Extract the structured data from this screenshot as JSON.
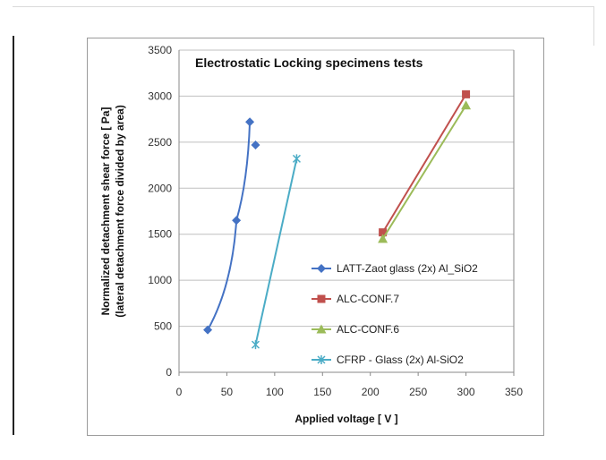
{
  "chart_data": {
    "type": "line",
    "title": "Electrostatic Locking specimens tests",
    "xlabel": "Applied voltage [ V ]",
    "ylabel_line1": "Normalized detachment  shear force [ Pa]",
    "ylabel_line2": "(lateral detachment force divided by area)",
    "xlim": [
      0,
      350
    ],
    "ylim": [
      0,
      3500
    ],
    "xticks": [
      0,
      50,
      100,
      150,
      200,
      250,
      300,
      350
    ],
    "yticks": [
      0,
      500,
      1000,
      1500,
      2000,
      2500,
      3000,
      3500
    ],
    "grid": "horizontal",
    "legend_position": "lower-right",
    "series": [
      {
        "name": "LATT-Zaot glass (2x) Al_SiO2",
        "color": "#4472c4",
        "marker": "diamond",
        "x": [
          30,
          60,
          74,
          80
        ],
        "y": [
          460,
          1650,
          2720,
          2470
        ]
      },
      {
        "name": "ALC-CONF.7",
        "color": "#c0504d",
        "marker": "square",
        "x": [
          213,
          300
        ],
        "y": [
          1520,
          3020
        ]
      },
      {
        "name": "ALC-CONF.6",
        "color": "#9bbb59",
        "marker": "triangle",
        "x": [
          213,
          300
        ],
        "y": [
          1450,
          2900
        ]
      },
      {
        "name": "CFRP - Glass (2x) Al-SiO2",
        "color": "#4bacc6",
        "marker": "star",
        "x": [
          80,
          123
        ],
        "y": [
          300,
          2320
        ]
      }
    ]
  }
}
